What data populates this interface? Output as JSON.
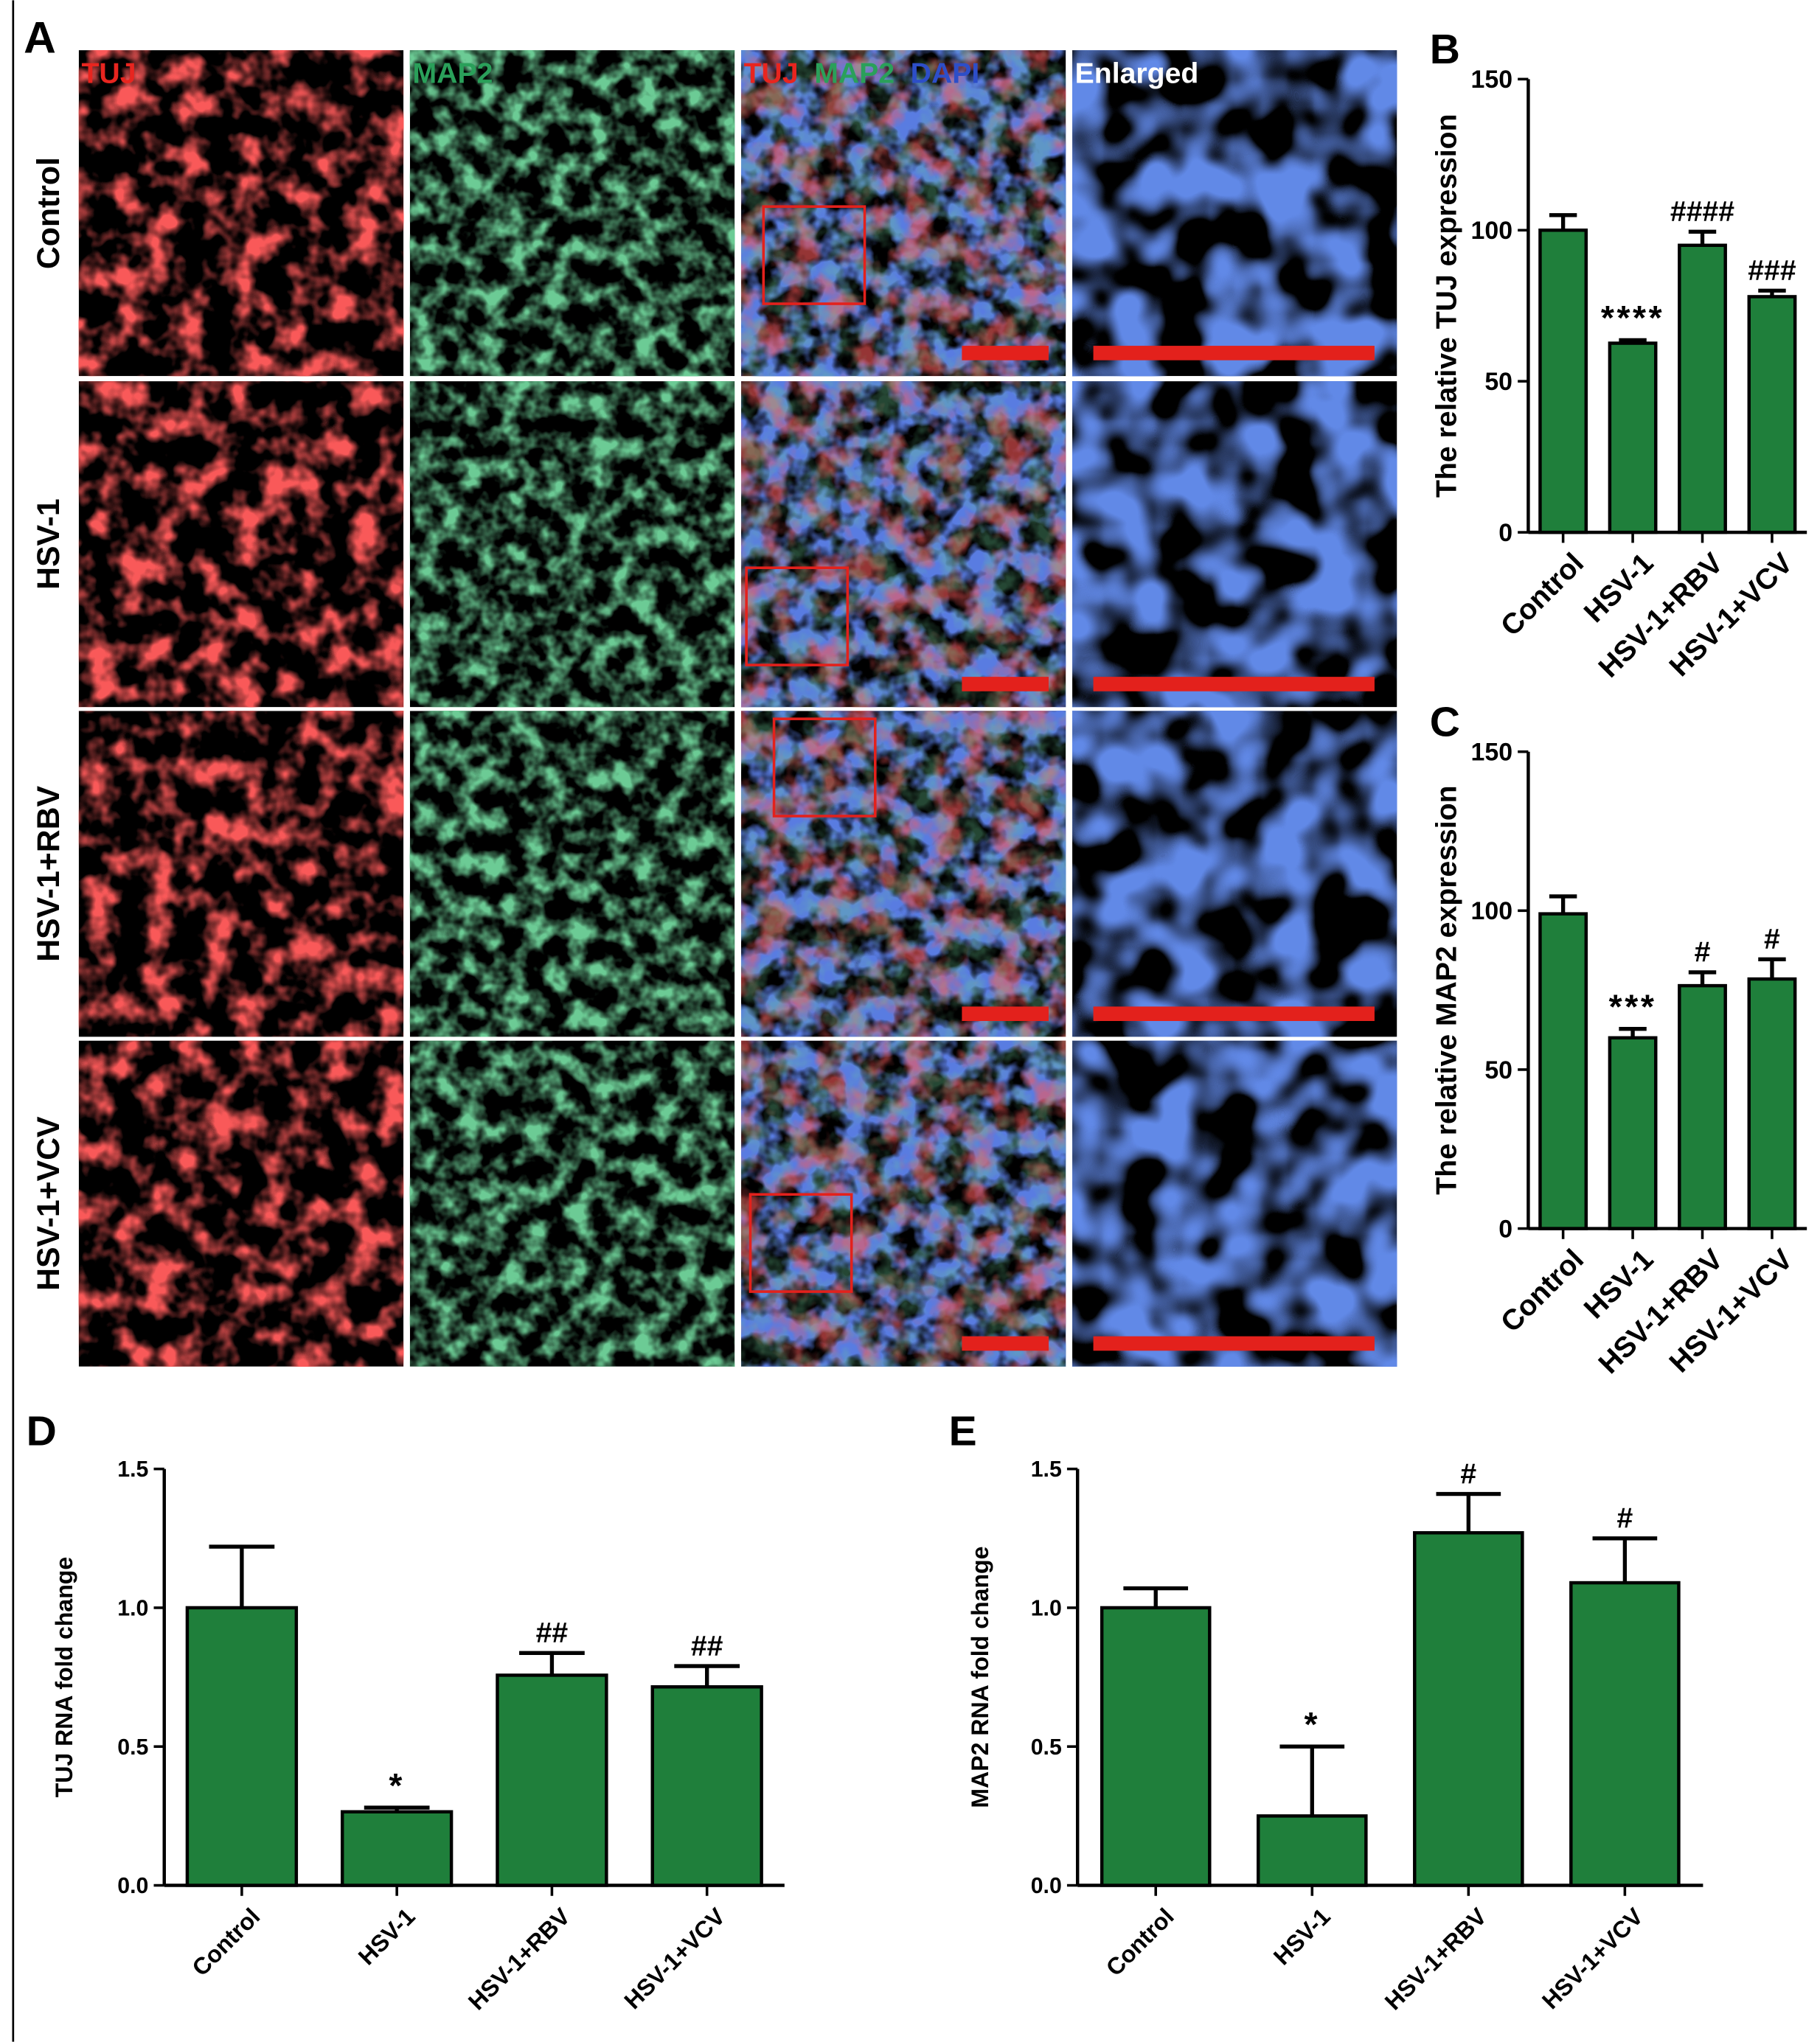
{
  "panel_a": {
    "label": "A",
    "column_labels": [
      "TUJ",
      "MAP2",
      [
        "TUJ",
        "MAP2",
        "DAPI"
      ],
      "Enlarged"
    ],
    "row_labels": [
      "Control",
      "HSV-1",
      "HSV-1+RBV",
      "HSV-1+VCV"
    ]
  },
  "chart_data": [
    {
      "type": "bar",
      "panel": "B",
      "ylabel": "The relative TUJ expression",
      "categories": [
        "Control",
        "HSV-1",
        "HSV-1+RBV",
        "HSV-1+VCV"
      ],
      "values": [
        100,
        62.6,
        95,
        78
      ],
      "errors": [
        5,
        1,
        4.5,
        2
      ],
      "annotations": [
        {
          "category": "HSV-1",
          "text": "****"
        },
        {
          "category": "HSV-1+RBV",
          "text": "####"
        },
        {
          "category": "HSV-1+VCV",
          "text": "###"
        }
      ],
      "color": "#1f7f3b",
      "ylim": [
        0,
        150
      ],
      "yticks": [
        0,
        50,
        100,
        150
      ]
    },
    {
      "type": "bar",
      "panel": "C",
      "ylabel": "The relative MAP2 expression",
      "categories": [
        "Control",
        "HSV-1",
        "HSV-1+RBV",
        "HSV-1+VCV"
      ],
      "values": [
        99,
        60,
        76.4,
        78.5
      ],
      "errors": [
        5.5,
        2.8,
        4.2,
        6.2
      ],
      "annotations": [
        {
          "category": "HSV-1",
          "text": "***"
        },
        {
          "category": "HSV-1+RBV",
          "text": "#"
        },
        {
          "category": "HSV-1+VCV",
          "text": "#"
        }
      ],
      "color": "#1f7f3b",
      "ylim": [
        0,
        150
      ],
      "yticks": [
        0,
        50,
        100,
        150
      ]
    },
    {
      "type": "bar",
      "panel": "D",
      "ylabel": "TUJ RNA fold change",
      "categories": [
        "Control",
        "HSV-1",
        "HSV-1+RBV",
        "HSV-1+VCV"
      ],
      "values": [
        1.0,
        0.265,
        0.757,
        0.715
      ],
      "errors": [
        0.22,
        0.015,
        0.08,
        0.075
      ],
      "annotations": [
        {
          "category": "HSV-1",
          "text": "*"
        },
        {
          "category": "HSV-1+RBV",
          "text": "##"
        },
        {
          "category": "HSV-1+VCV",
          "text": "##"
        }
      ],
      "color": "#1f7f3b",
      "ylim": [
        0,
        1.5
      ],
      "yticks": [
        {
          "value": 0,
          "label": "0.0"
        },
        0.5,
        {
          "value": 1,
          "label": "1.0"
        },
        1.5
      ]
    },
    {
      "type": "bar",
      "panel": "E",
      "ylabel": "MAP2 RNA fold change",
      "categories": [
        "Control",
        "HSV-1",
        "HSV-1+RBV",
        "HSV-1+VCV"
      ],
      "values": [
        1.0,
        0.25,
        1.27,
        1.09
      ],
      "errors": [
        0.07,
        0.25,
        0.14,
        0.16
      ],
      "annotations": [
        {
          "category": "HSV-1",
          "text": "*"
        },
        {
          "category": "HSV-1+RBV",
          "text": "#"
        },
        {
          "category": "HSV-1+VCV",
          "text": "#"
        }
      ],
      "color": "#1f7f3b",
      "ylim": [
        0,
        1.5
      ],
      "yticks": [
        {
          "value": 0,
          "label": "0.0"
        },
        0.5,
        {
          "value": 1,
          "label": "1.0"
        },
        1.5
      ]
    }
  ]
}
